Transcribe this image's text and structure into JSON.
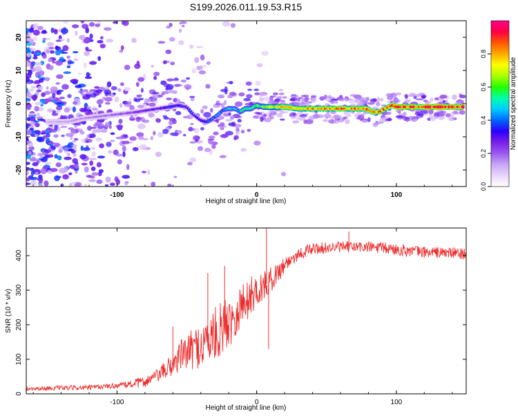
{
  "title": "S199.2026.011.19.53.R15",
  "chart_data": [
    {
      "type": "heatmap",
      "name": "spectrogram",
      "xlabel": "Height of straight line (km)",
      "ylabel": "Frequency (Hz)",
      "xlim": [
        -165,
        150
      ],
      "ylim": [
        -25,
        25
      ],
      "xticks": [
        -100,
        0,
        100
      ],
      "yticks": [
        20,
        10,
        0,
        -10,
        -20
      ],
      "colorbar": {
        "label": "Normalized spectral amplitude",
        "range": [
          0,
          1
        ],
        "ticks": [
          "0.0",
          "0.2",
          "0.4",
          "0.6",
          "0.8"
        ],
        "colors": [
          "#ffffff",
          "#e9d5fb",
          "#c9a6f5",
          "#9a5af0",
          "#7a1fe8",
          "#2a00ff",
          "#0066ff",
          "#00ccff",
          "#00ffaa",
          "#22ff00",
          "#aaff00",
          "#ffff00",
          "#ffaa00",
          "#ff5500",
          "#ff0044",
          "#ff0088"
        ]
      },
      "ridge": {
        "x": [
          -145,
          -135,
          -125,
          -115,
          -105,
          -95,
          -85,
          -78,
          -70,
          -62,
          -56,
          -50,
          -46,
          -43,
          -40,
          -36,
          -33,
          -28,
          -24,
          -20,
          -15,
          -12,
          -8,
          -4,
          0,
          5,
          10,
          20,
          30,
          40,
          50,
          60,
          70,
          78,
          83,
          88,
          92,
          97,
          100,
          110,
          120,
          130,
          140,
          148
        ],
        "y": [
          -5.5,
          -5.5,
          -4.5,
          -4,
          -3.5,
          -3,
          -2.5,
          -2,
          -1.5,
          -1,
          -0.5,
          -1,
          -3,
          -4,
          -5,
          -5.5,
          -5,
          -3.5,
          -2,
          -1.5,
          -1.5,
          -2.5,
          -1.5,
          -1.5,
          -0.5,
          -1,
          -1,
          -1,
          -1.5,
          -1.5,
          -1.5,
          -1.5,
          -1.5,
          -1.5,
          -2.5,
          -2.5,
          -1.5,
          -0.5,
          -1,
          -1,
          -1,
          -1,
          -1,
          -1
        ]
      },
      "ridge_amplitude": {
        "x": [
          -150,
          -110,
          -80,
          -60,
          -40,
          -20,
          0,
          20,
          50,
          80,
          110,
          150
        ],
        "v": [
          0.12,
          0.18,
          0.28,
          0.35,
          0.35,
          0.45,
          0.6,
          0.8,
          0.85,
          0.85,
          0.92,
          0.92
        ]
      }
    },
    {
      "type": "line",
      "name": "snr",
      "xlabel": "Height of straight line (km)",
      "ylabel": "SNR (10 * v/v)",
      "xlim": [
        -165,
        150
      ],
      "ylim": [
        0,
        480
      ],
      "xticks": [
        -100,
        0,
        100
      ],
      "yticks": [
        0,
        100,
        200,
        300,
        400
      ],
      "color": "#ee2c2c",
      "trend": {
        "x": [
          -165,
          -120,
          -95,
          -80,
          -70,
          -60,
          -55,
          -48,
          -40,
          -30,
          -20,
          -12,
          -5,
          0,
          5,
          10,
          15,
          20,
          25,
          30,
          40,
          60,
          80,
          100,
          120,
          140,
          150
        ],
        "y": [
          15,
          18,
          25,
          35,
          55,
          85,
          110,
          125,
          140,
          170,
          210,
          250,
          280,
          300,
          310,
          330,
          350,
          375,
          390,
          405,
          420,
          425,
          425,
          418,
          410,
          408,
          405
        ]
      },
      "noise": {
        "x": [
          -165,
          -100,
          -70,
          -55,
          -45,
          -30,
          -15,
          0,
          15,
          30,
          60,
          100,
          150
        ],
        "amp": [
          6,
          8,
          20,
          45,
          60,
          80,
          75,
          50,
          30,
          18,
          16,
          18,
          16
        ]
      },
      "spikes": [
        {
          "x": 7,
          "y": 480
        },
        {
          "x": 8.5,
          "y": 130
        },
        {
          "x": -23,
          "y": 370
        },
        {
          "x": -35,
          "y": 350
        },
        {
          "x": -60,
          "y": 195
        },
        {
          "x": 66,
          "y": 470
        }
      ]
    }
  ]
}
